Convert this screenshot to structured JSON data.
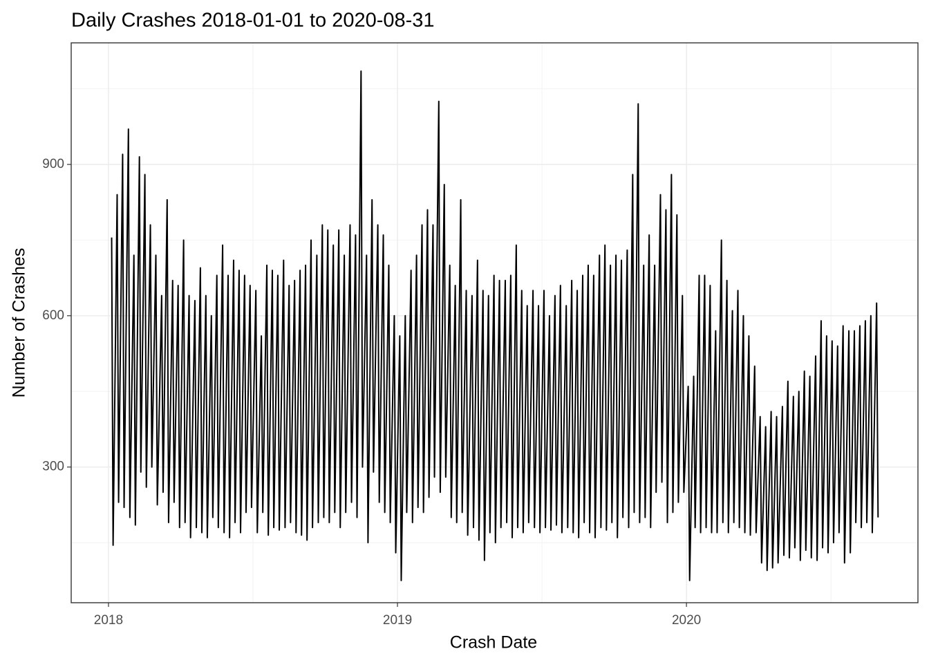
{
  "chart_data": {
    "type": "line",
    "title": "Daily Crashes 2018-01-01 to 2020-08-31",
    "x_label": "Crash Date",
    "y_label": "Number of Crashes",
    "color": "#000000",
    "grid": true,
    "xlim": [
      2017.871,
      2020.801
    ],
    "xticks": [
      2018,
      2019,
      2020
    ],
    "x_minor_grid": [
      2018.5,
      2019.5,
      2020.5
    ],
    "ylim": [
      31,
      1141
    ],
    "yticks": [
      300,
      600,
      900
    ],
    "y_minor_grid": [
      150,
      450,
      750,
      1050
    ],
    "x": [
      2018.011,
      2018.016,
      2018.03,
      2018.035,
      2018.049,
      2018.054,
      2018.069,
      2018.074,
      2018.088,
      2018.093,
      2018.107,
      2018.112,
      2018.126,
      2018.131,
      2018.145,
      2018.15,
      2018.164,
      2018.169,
      2018.184,
      2018.189,
      2018.203,
      2018.208,
      2018.222,
      2018.227,
      2018.241,
      2018.246,
      2018.26,
      2018.265,
      2018.279,
      2018.284,
      2018.299,
      2018.304,
      2018.318,
      2018.323,
      2018.337,
      2018.342,
      2018.356,
      2018.361,
      2018.375,
      2018.38,
      2018.395,
      2018.4,
      2018.414,
      2018.419,
      2018.433,
      2018.438,
      2018.452,
      2018.457,
      2018.471,
      2018.476,
      2018.49,
      2018.495,
      2018.51,
      2018.515,
      2018.529,
      2018.534,
      2018.548,
      2018.553,
      2018.567,
      2018.572,
      2018.586,
      2018.591,
      2018.606,
      2018.611,
      2018.625,
      2018.63,
      2018.644,
      2018.649,
      2018.663,
      2018.668,
      2018.682,
      2018.687,
      2018.701,
      2018.706,
      2018.721,
      2018.726,
      2018.74,
      2018.745,
      2018.759,
      2018.764,
      2018.778,
      2018.783,
      2018.797,
      2018.802,
      2018.816,
      2018.821,
      2018.836,
      2018.841,
      2018.855,
      2018.86,
      2018.874,
      2018.879,
      2018.893,
      2018.898,
      2018.912,
      2018.917,
      2018.932,
      2018.937,
      2018.951,
      2018.956,
      2018.97,
      2018.975,
      2018.989,
      2018.994,
      2019.008,
      2019.013,
      2019.027,
      2019.032,
      2019.047,
      2019.052,
      2019.066,
      2019.071,
      2019.085,
      2019.09,
      2019.104,
      2019.109,
      2019.123,
      2019.128,
      2019.143,
      2019.148,
      2019.162,
      2019.167,
      2019.181,
      2019.186,
      2019.2,
      2019.205,
      2019.219,
      2019.224,
      2019.238,
      2019.243,
      2019.258,
      2019.263,
      2019.277,
      2019.282,
      2019.296,
      2019.301,
      2019.315,
      2019.32,
      2019.334,
      2019.339,
      2019.353,
      2019.358,
      2019.373,
      2019.378,
      2019.392,
      2019.397,
      2019.411,
      2019.416,
      2019.43,
      2019.435,
      2019.449,
      2019.454,
      2019.469,
      2019.474,
      2019.488,
      2019.493,
      2019.507,
      2019.512,
      2019.526,
      2019.531,
      2019.545,
      2019.55,
      2019.564,
      2019.569,
      2019.584,
      2019.589,
      2019.603,
      2019.608,
      2019.622,
      2019.627,
      2019.641,
      2019.646,
      2019.66,
      2019.665,
      2019.679,
      2019.684,
      2019.699,
      2019.704,
      2019.718,
      2019.723,
      2019.737,
      2019.742,
      2019.756,
      2019.761,
      2019.775,
      2019.78,
      2019.795,
      2019.8,
      2019.814,
      2019.819,
      2019.833,
      2019.838,
      2019.852,
      2019.857,
      2019.871,
      2019.876,
      2019.89,
      2019.895,
      2019.91,
      2019.915,
      2019.929,
      2019.934,
      2019.948,
      2019.953,
      2019.967,
      2019.972,
      2019.986,
      2019.991,
      2020.006,
      2020.011,
      2020.025,
      2020.03,
      2020.044,
      2020.049,
      2020.063,
      2020.068,
      2020.082,
      2020.087,
      2020.101,
      2020.106,
      2020.121,
      2020.126,
      2020.14,
      2020.145,
      2020.159,
      2020.164,
      2020.178,
      2020.183,
      2020.197,
      2020.202,
      2020.216,
      2020.221,
      2020.236,
      2020.241,
      2020.255,
      2020.26,
      2020.274,
      2020.279,
      2020.293,
      2020.298,
      2020.312,
      2020.317,
      2020.332,
      2020.337,
      2020.351,
      2020.356,
      2020.37,
      2020.375,
      2020.389,
      2020.394,
      2020.408,
      2020.413,
      2020.427,
      2020.432,
      2020.447,
      2020.452,
      2020.466,
      2020.471,
      2020.485,
      2020.49,
      2020.504,
      2020.509,
      2020.523,
      2020.528,
      2020.542,
      2020.547,
      2020.562,
      2020.567,
      2020.581,
      2020.586,
      2020.6,
      2020.605,
      2020.619,
      2020.624,
      2020.638,
      2020.643,
      2020.658,
      2020.663
    ],
    "values": [
      755,
      145,
      840,
      230,
      920,
      220,
      970,
      200,
      720,
      185,
      915,
      290,
      880,
      260,
      780,
      300,
      720,
      225,
      640,
      250,
      830,
      190,
      670,
      230,
      660,
      180,
      750,
      190,
      640,
      160,
      630,
      180,
      695,
      170,
      640,
      160,
      600,
      200,
      680,
      180,
      740,
      170,
      680,
      160,
      710,
      190,
      690,
      170,
      680,
      210,
      660,
      220,
      650,
      170,
      560,
      210,
      700,
      165,
      690,
      180,
      680,
      175,
      710,
      180,
      660,
      190,
      670,
      170,
      690,
      165,
      700,
      155,
      750,
      180,
      720,
      190,
      780,
      200,
      770,
      190,
      740,
      210,
      770,
      180,
      720,
      210,
      780,
      230,
      760,
      200,
      1085,
      300,
      720,
      150,
      830,
      290,
      780,
      230,
      760,
      210,
      700,
      190,
      600,
      130,
      560,
      75,
      600,
      210,
      690,
      190,
      720,
      220,
      780,
      210,
      810,
      240,
      780,
      280,
      1025,
      250,
      860,
      280,
      700,
      200,
      660,
      190,
      830,
      210,
      650,
      165,
      640,
      180,
      710,
      155,
      650,
      115,
      640,
      170,
      680,
      150,
      670,
      180,
      670,
      190,
      680,
      160,
      740,
      180,
      650,
      170,
      620,
      190,
      650,
      180,
      620,
      170,
      650,
      180,
      600,
      175,
      640,
      185,
      660,
      170,
      620,
      180,
      670,
      170,
      650,
      160,
      680,
      190,
      700,
      170,
      680,
      160,
      720,
      180,
      740,
      175,
      700,
      190,
      720,
      160,
      710,
      200,
      730,
      180,
      880,
      210,
      1020,
      190,
      700,
      200,
      760,
      180,
      700,
      250,
      840,
      270,
      810,
      190,
      880,
      210,
      800,
      230,
      640,
      250,
      460,
      75,
      480,
      180,
      680,
      170,
      680,
      180,
      660,
      170,
      570,
      170,
      750,
      190,
      670,
      170,
      610,
      190,
      650,
      180,
      600,
      170,
      560,
      165,
      500,
      170,
      400,
      110,
      380,
      95,
      410,
      100,
      400,
      110,
      420,
      125,
      470,
      120,
      440,
      140,
      450,
      115,
      490,
      135,
      480,
      120,
      520,
      115,
      590,
      140,
      560,
      130,
      550,
      150,
      540,
      170,
      580,
      110,
      570,
      130,
      570,
      190,
      580,
      180,
      590,
      190,
      600,
      170,
      625,
      200
    ]
  }
}
